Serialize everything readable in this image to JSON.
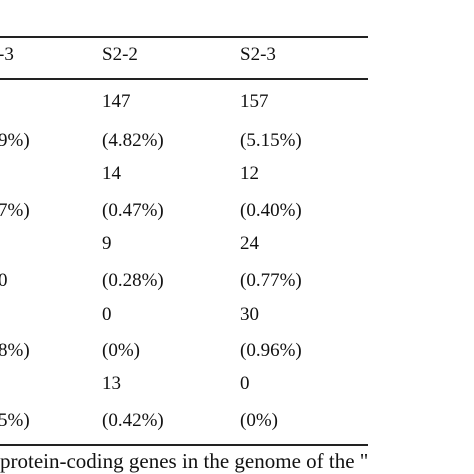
{
  "table": {
    "headers": [
      "-3",
      "S2-2",
      "S2-3"
    ],
    "rows": [
      [
        "",
        "147",
        "157"
      ],
      [
        "9%)",
        "(4.82%)",
        "(5.15%)"
      ],
      [
        "",
        "14",
        "12"
      ],
      [
        "7%)",
        "(0.47%)",
        "(0.40%)"
      ],
      [
        "",
        "9",
        "24"
      ],
      [
        "0",
        "(0.28%)",
        "(0.77%)"
      ],
      [
        "",
        "0",
        "30"
      ],
      [
        "8%)",
        "(0%)",
        "(0.96%)"
      ],
      [
        "",
        "13",
        "0"
      ],
      [
        "5%)",
        "(0.42%)",
        "(0%)"
      ]
    ]
  },
  "caption": "protein-coding genes in the genome of the \""
}
